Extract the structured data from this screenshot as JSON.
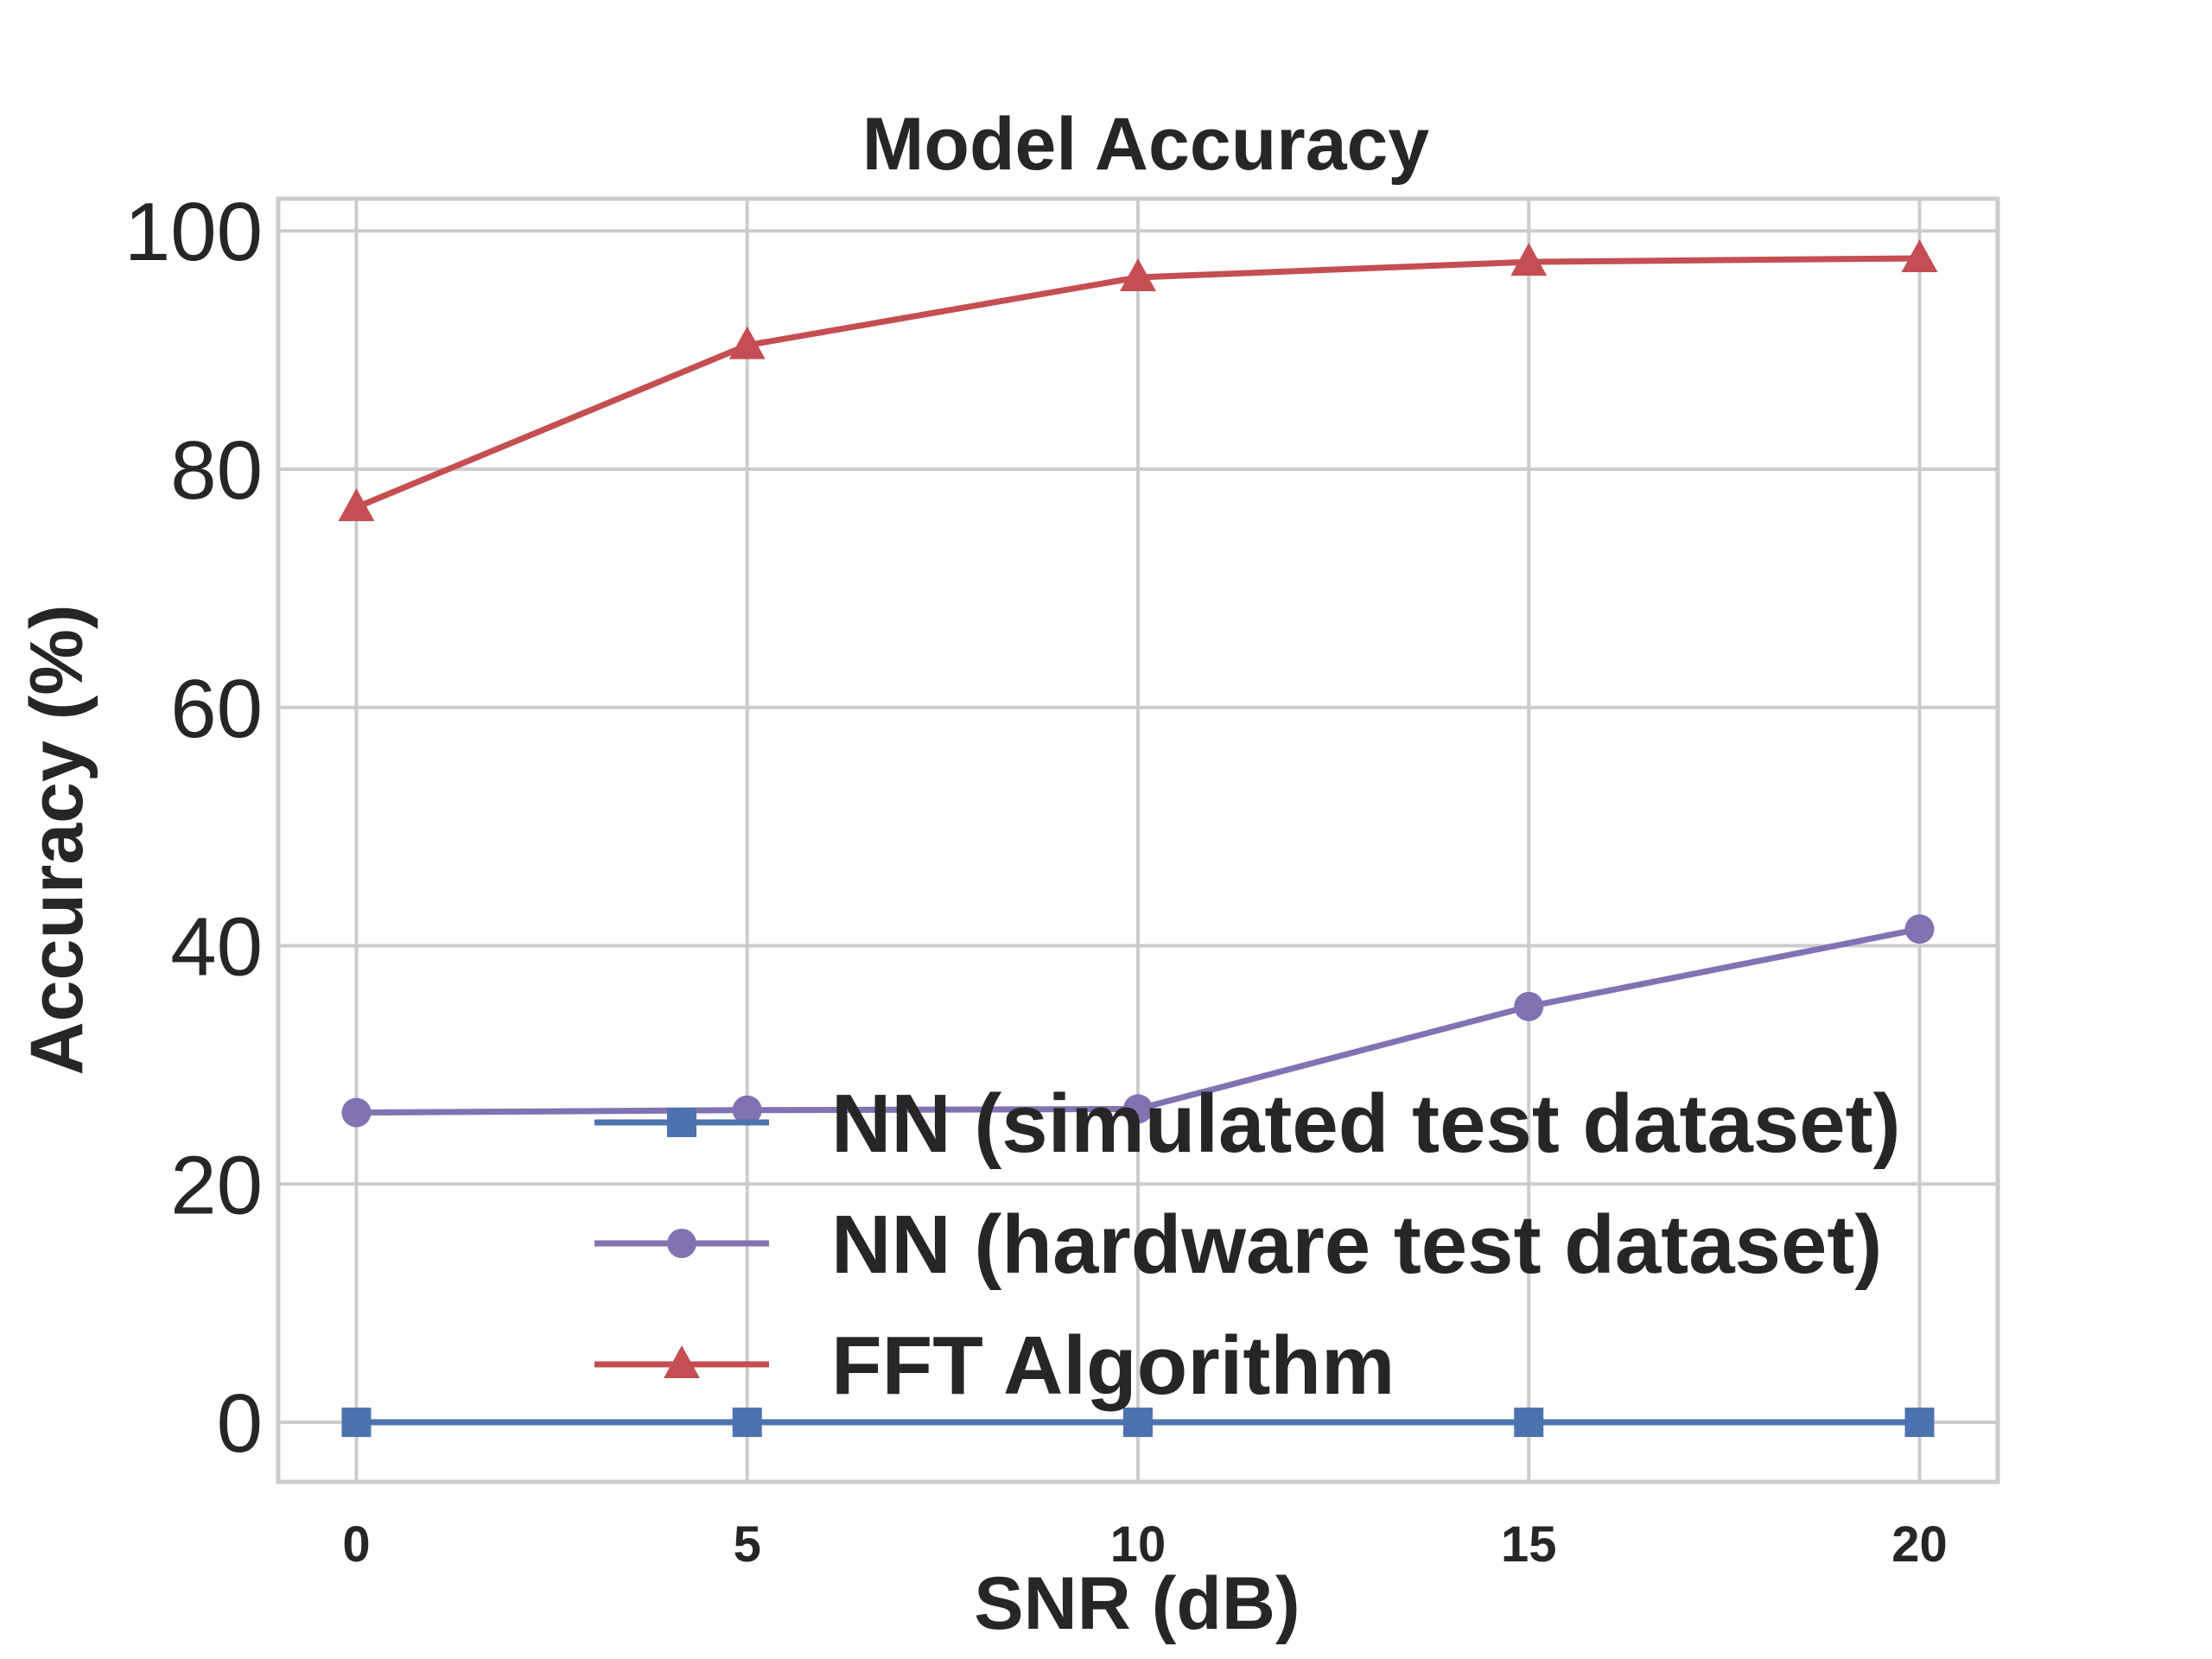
{
  "chart_data": {
    "type": "line",
    "title": "Model Accuracy",
    "xlabel": "SNR (dB)",
    "ylabel": "Accuracy (%)",
    "x": [
      0,
      5,
      10,
      15,
      20
    ],
    "xticks": [
      "0",
      "5",
      "10",
      "15",
      "20"
    ],
    "yticks": [
      "0",
      "20",
      "40",
      "60",
      "80",
      "100"
    ],
    "xlim": [
      -1,
      21
    ],
    "ylim": [
      -5,
      102.7
    ],
    "grid": true,
    "legend": "lower-right",
    "series": [
      {
        "name": "NN (simulated test dataset)",
        "values": [
          0,
          0,
          0,
          0,
          0
        ],
        "color": "#4c72b0",
        "marker": "square"
      },
      {
        "name": "NN (hardware test dataset)",
        "values": [
          26.0,
          26.2,
          26.3,
          34.9,
          41.4
        ],
        "color": "#8172b2",
        "marker": "circle"
      },
      {
        "name": "FFT Algorithm",
        "values": [
          76.8,
          90.4,
          96.1,
          97.4,
          97.7
        ],
        "color": "#c44e52",
        "marker": "triangle"
      }
    ]
  }
}
